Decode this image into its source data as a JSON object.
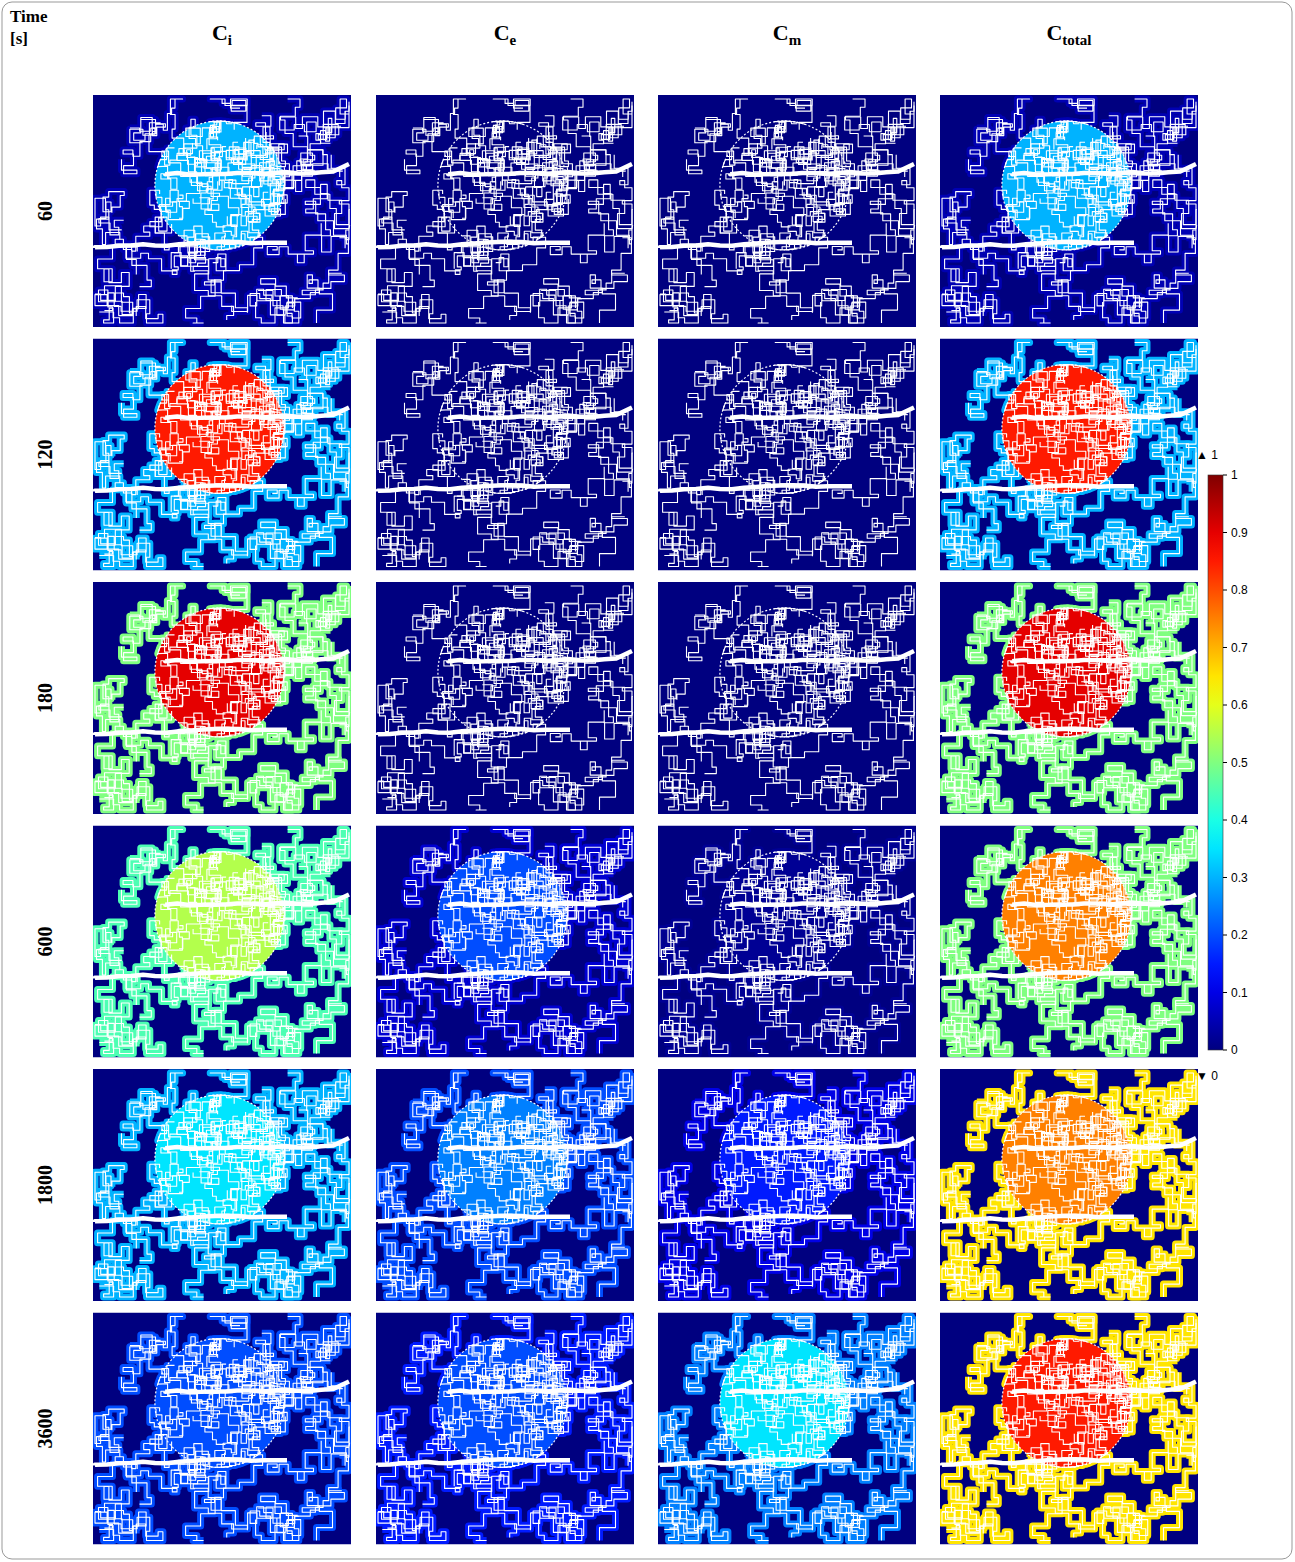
{
  "chart_data": {
    "type": "heatmap_grid",
    "row_header": [
      "Time",
      "[s]"
    ],
    "columns": [
      {
        "main": "C",
        "sub": "i"
      },
      {
        "main": "C",
        "sub": "e"
      },
      {
        "main": "C",
        "sub": "m"
      },
      {
        "main": "C",
        "sub": "total"
      }
    ],
    "rows": [
      {
        "time": 60,
        "tumor": [
          0.3,
          0,
          0,
          0.3
        ],
        "network": [
          0.05,
          0,
          0,
          0.05
        ]
      },
      {
        "time": 120,
        "tumor": [
          0.85,
          0,
          0,
          0.85
        ],
        "network": [
          0.3,
          0,
          0,
          0.3
        ]
      },
      {
        "time": 180,
        "tumor": [
          0.9,
          0,
          0,
          0.9
        ],
        "network": [
          0.5,
          0,
          0,
          0.5
        ]
      },
      {
        "time": 600,
        "tumor": [
          0.55,
          0.2,
          0.02,
          0.75
        ],
        "network": [
          0.45,
          0.08,
          0.02,
          0.5
        ]
      },
      {
        "time": 1800,
        "tumor": [
          0.35,
          0.25,
          0.15,
          0.75
        ],
        "network": [
          0.3,
          0.2,
          0.1,
          0.65
        ]
      },
      {
        "time": 3600,
        "tumor": [
          0.2,
          0.2,
          0.35,
          0.85
        ],
        "network": [
          0.2,
          0.15,
          0.25,
          0.65
        ]
      }
    ],
    "colorbar": {
      "range": [
        0,
        1
      ],
      "ticks": [
        0,
        0.1,
        0.2,
        0.3,
        0.4,
        0.5,
        0.6,
        0.7,
        0.8,
        0.9,
        1
      ],
      "max_label": "▲ 1",
      "min_label": "▼ 0"
    }
  }
}
